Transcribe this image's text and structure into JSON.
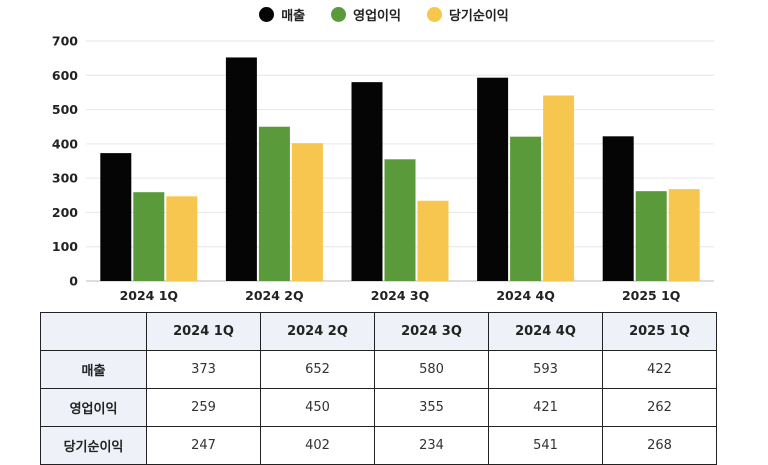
{
  "colors": {
    "revenue": "#050505",
    "operating": "#5a9a3a",
    "net": "#f7c64e",
    "grid": "#e6e6e6",
    "table_header_bg": "#eef2f8"
  },
  "legend": [
    {
      "label": "매출",
      "color": "#050505"
    },
    {
      "label": "영업이익",
      "color": "#5a9a3a"
    },
    {
      "label": "당기순이익",
      "color": "#f7c64e"
    }
  ],
  "chart_data": {
    "type": "bar",
    "categories": [
      "2024 1Q",
      "2024 2Q",
      "2024 3Q",
      "2024 4Q",
      "2025 1Q"
    ],
    "series": [
      {
        "name": "매출",
        "values": [
          373,
          652,
          580,
          593,
          422
        ]
      },
      {
        "name": "영업이익",
        "values": [
          259,
          450,
          355,
          421,
          262
        ]
      },
      {
        "name": "당기순이익",
        "values": [
          247,
          402,
          234,
          541,
          268
        ]
      }
    ],
    "yticks": [
      "0",
      "100",
      "200",
      "300",
      "400",
      "500",
      "600",
      "700"
    ],
    "ylim": [
      0,
      700
    ],
    "grid": true,
    "legend_position": "top-center"
  },
  "table": {
    "corner": "",
    "columns": [
      "2024 1Q",
      "2024 2Q",
      "2024 3Q",
      "2024 4Q",
      "2025 1Q"
    ],
    "rows": [
      {
        "label": "매출",
        "values": [
          "373",
          "652",
          "580",
          "593",
          "422"
        ]
      },
      {
        "label": "영업이익",
        "values": [
          "259",
          "450",
          "355",
          "421",
          "262"
        ]
      },
      {
        "label": "당기순이익",
        "values": [
          "247",
          "402",
          "234",
          "541",
          "268"
        ]
      }
    ]
  }
}
